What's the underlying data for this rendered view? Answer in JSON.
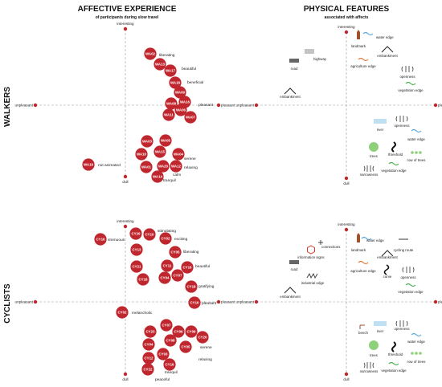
{
  "headers": {
    "affective_title": "AFFECTIVE EXPERIENCE",
    "affective_sub": "of participants during slow travel",
    "physical_title": "PHYSICAL FEATURES",
    "physical_sub": "associated with affects",
    "row_walkers": "WALKERS",
    "row_cyclists": "CYCLISTS"
  },
  "axes": {
    "top": "interesting",
    "bottom": "dull",
    "left": "unpleasant",
    "right": "pleasant"
  },
  "colors": {
    "bubble": "#c0262d",
    "feature_blue": "#5aa9dc",
    "feature_green": "#4caf50",
    "feature_green_light": "#8fd17b",
    "feature_brown": "#a0522d",
    "feature_orange": "#e07b39",
    "feature_gray": "#666666"
  },
  "walkers": {
    "participants": [
      "WA02",
      "WA13",
      "WA17",
      "WA18",
      "WA09",
      "WA08",
      "WA16",
      "WA06",
      "WA11",
      "WA07",
      "WA03",
      "WA05",
      "WA10",
      "WA15",
      "WA04",
      "WA01",
      "WA20",
      "WA12",
      "WA14",
      "WA19",
      "WA05",
      "WA03",
      "WA10",
      "WA01"
    ],
    "affect_labels": [
      "liberating",
      "beautiful",
      "beneficial",
      "pleasant",
      "serene",
      "relaxing",
      "calm",
      "tranquil",
      "not animated"
    ]
  },
  "cyclists": {
    "participants": [
      "CY20",
      "CY10",
      "CY02",
      "CY07",
      "CY05",
      "CY21",
      "CY11",
      "CY13",
      "CY06",
      "CY04",
      "CY18",
      "CY09",
      "CY15",
      "CY17",
      "CY19",
      "CY16",
      "CY01",
      "CY03",
      "CY14",
      "CY08",
      "CY12"
    ],
    "affect_labels": [
      "stimulating",
      "exciting",
      "strenuous",
      "liberating",
      "beautiful",
      "gratifying",
      "pleasant",
      "melancholic",
      "serene",
      "relaxing",
      "tranquil",
      "peaceful"
    ]
  },
  "walker_features": [
    "water edge",
    "landmark",
    "embankment",
    "agriculture edge",
    "openness",
    "vegetation edge",
    "highway",
    "road",
    "embankment",
    "river",
    "openness",
    "water edge",
    "trees",
    "threshold",
    "row of trees",
    "narrowness",
    "vegetation edge"
  ],
  "cyclist_features": [
    "connections",
    "information signs",
    "water edge",
    "cycling route",
    "landmark",
    "embankment",
    "agriculture edge",
    "curve",
    "openness",
    "road",
    "industrial edge",
    "vegetation edge",
    "embankment",
    "bench",
    "river",
    "water edge",
    "openness",
    "trees",
    "threshold",
    "row of trees",
    "narrowness",
    "vegetation edge"
  ]
}
